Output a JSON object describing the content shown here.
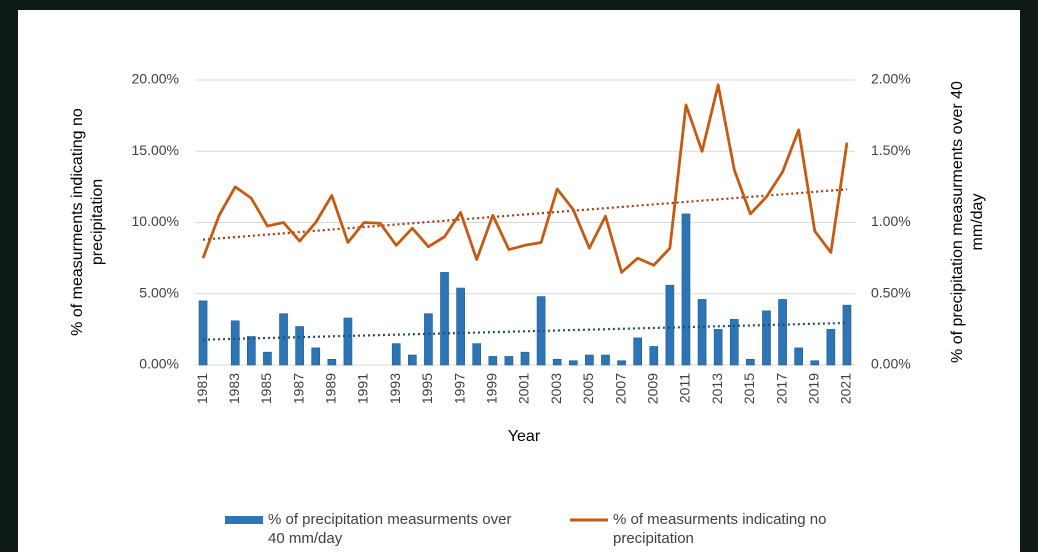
{
  "chart_data": {
    "type": "bar_line",
    "xlabel": "Year",
    "ylabel": "% of measurments indicating no precipitation",
    "y2label": "% of precipitation measurments over 40 mm/day",
    "categories": [
      "1981",
      null,
      "1983",
      null,
      "1985",
      null,
      "1987",
      null,
      "1989",
      null,
      "1991",
      null,
      "1993",
      null,
      "1995",
      null,
      "1997",
      null,
      "1999",
      null,
      "2001",
      null,
      "2003",
      null,
      "2005",
      null,
      "2007",
      null,
      "2009",
      null,
      "2011",
      null,
      "2013",
      null,
      "2015",
      null,
      "2017",
      null,
      "2019",
      null,
      "2021"
    ],
    "series": [
      {
        "name": "% of precipitation measurments over 40 mm/day",
        "type": "bar",
        "axis": "y2",
        "color": "#2e75b6",
        "trendline_color": "#1f4e79",
        "values": [
          0.45,
          0,
          0.31,
          0.2,
          0.09,
          0.36,
          0.27,
          0.12,
          0.04,
          0.33,
          0,
          0,
          0.15,
          0.07,
          0.36,
          0.65,
          0.54,
          0.15,
          0.06,
          0.06,
          0.09,
          0.48,
          0.04,
          0.03,
          0.07,
          0.07,
          0.03,
          0.19,
          0.13,
          0.56,
          1.06,
          0.46,
          0.25,
          0.32,
          0.04,
          0.38,
          0.46,
          0.12,
          0.03,
          0.25,
          0.42
        ]
      },
      {
        "name": "% of measurments indicating no precipitation",
        "type": "line",
        "color": "#c55a11",
        "trendline_color": "#a33a0a",
        "values": [
          7.5,
          10.5,
          12.5,
          11.7,
          9.75,
          10.0,
          8.7,
          10.0,
          11.9,
          8.6,
          10.0,
          9.95,
          8.4,
          9.6,
          8.3,
          9.0,
          10.7,
          7.4,
          10.5,
          8.1,
          8.4,
          8.6,
          12.35,
          10.9,
          8.2,
          10.45,
          6.5,
          7.5,
          7.0,
          8.2,
          18.25,
          15.0,
          19.65,
          13.7,
          10.6,
          11.8,
          13.55,
          16.5,
          9.4,
          7.9,
          15.6
        ]
      }
    ],
    "ylim": [
      0,
      20
    ],
    "yticks": [
      {
        "value": 0,
        "label": "0.00%"
      },
      {
        "value": 5,
        "label": "5.00%"
      },
      {
        "value": 10,
        "label": "10.00%"
      },
      {
        "value": 15,
        "label": "15.00%"
      },
      {
        "value": 20,
        "label": "20.00%"
      }
    ],
    "y2lim": [
      0,
      2
    ],
    "y2ticks": [
      {
        "value": 0,
        "label": "0.00%"
      },
      {
        "value": 0.5,
        "label": "0.50%"
      },
      {
        "value": 1,
        "label": "1.00%"
      },
      {
        "value": 1.5,
        "label": "1.50%"
      },
      {
        "value": 2,
        "label": "2.00%"
      }
    ],
    "grid": true,
    "trendline": true,
    "legend": "bottom"
  }
}
